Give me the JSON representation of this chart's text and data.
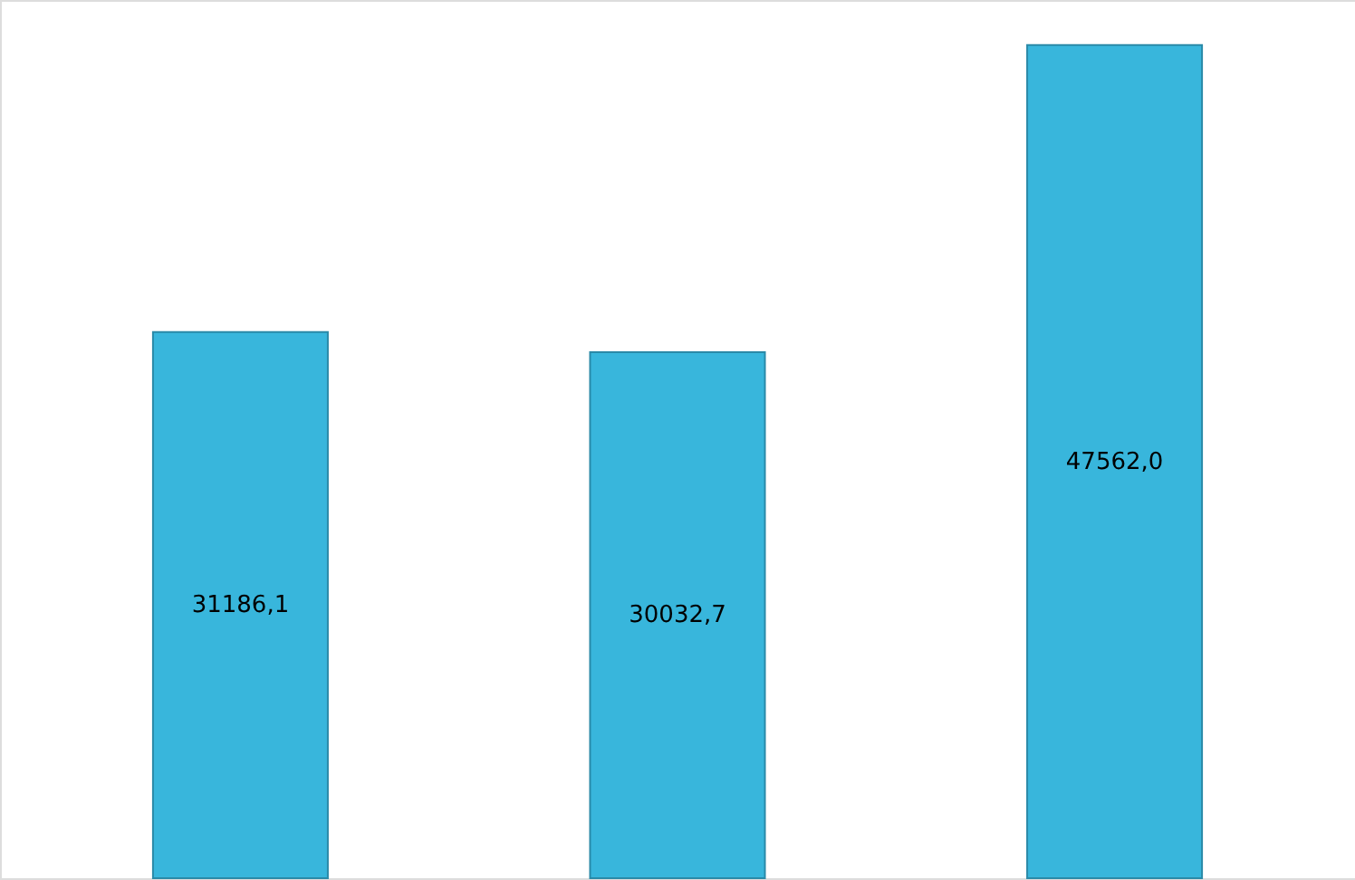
{
  "chart_data": {
    "type": "bar",
    "categories": [
      null,
      null,
      null
    ],
    "values": [
      31186.1,
      30032.7,
      47562.0
    ],
    "value_labels": [
      "31186,1",
      "30032,7",
      "47562,0"
    ],
    "color": "#38b6dc",
    "ylim": [
      0,
      50140
    ],
    "tick_labels": false,
    "grid": false
  }
}
